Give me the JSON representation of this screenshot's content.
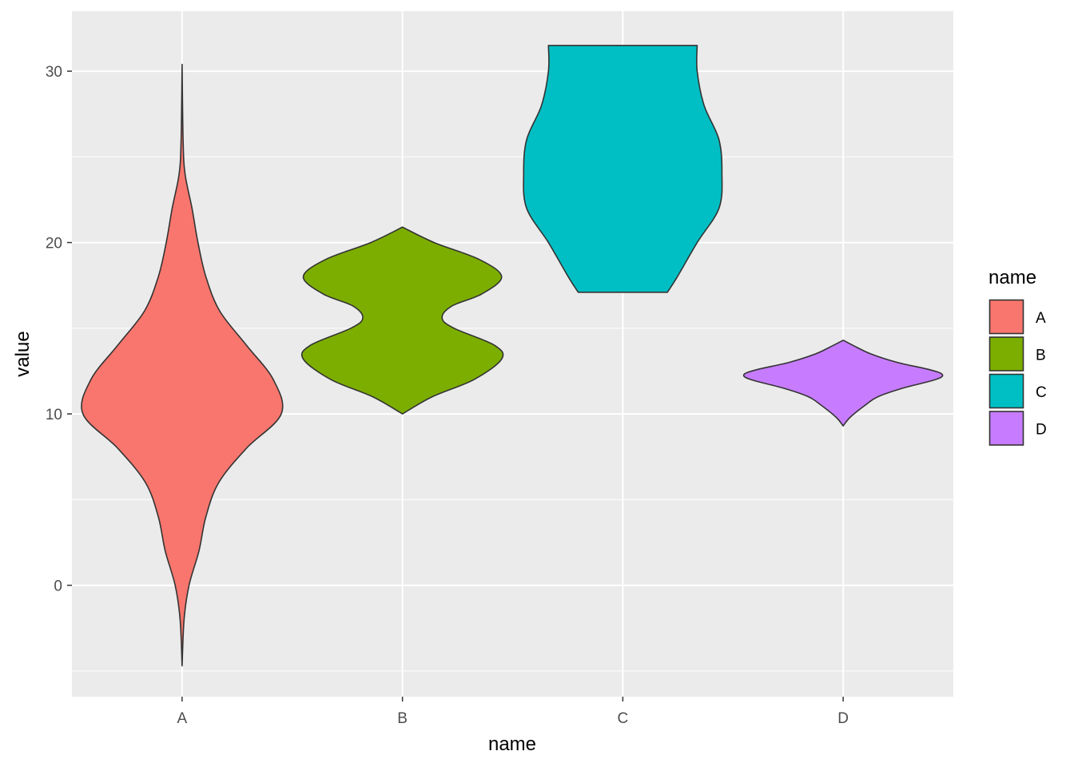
{
  "chart_data": {
    "type": "violin",
    "xlabel": "name",
    "ylabel": "value",
    "categories": [
      "A",
      "B",
      "C",
      "D"
    ],
    "ylim": [
      -6.5,
      33.5
    ],
    "y_ticks": [
      0,
      10,
      20,
      30
    ],
    "y_tick_labels": [
      "0",
      "10",
      "20",
      "30"
    ],
    "grid": true,
    "legend": {
      "title": "name",
      "position": "right",
      "entries": [
        "A",
        "B",
        "C",
        "D"
      ]
    },
    "colors": {
      "A": "#F8766D",
      "B": "#7CAE00",
      "C": "#00BFC4",
      "D": "#C77CFF",
      "panel": "#EBEBEB",
      "outline": "#333333"
    },
    "series": [
      {
        "name": "A",
        "profile": [
          [
            -4.7,
            0.0
          ],
          [
            -2.0,
            0.02
          ],
          [
            0.0,
            0.07
          ],
          [
            2.0,
            0.17
          ],
          [
            4.0,
            0.24
          ],
          [
            6.0,
            0.37
          ],
          [
            8.0,
            0.65
          ],
          [
            10.0,
            1.0
          ],
          [
            12.0,
            0.92
          ],
          [
            14.0,
            0.65
          ],
          [
            16.0,
            0.38
          ],
          [
            18.0,
            0.24
          ],
          [
            20.0,
            0.16
          ],
          [
            22.0,
            0.1
          ],
          [
            24.0,
            0.03
          ],
          [
            26.0,
            0.01
          ],
          [
            30.4,
            0.0
          ]
        ]
      },
      {
        "name": "B",
        "profile": [
          [
            10.0,
            0.0
          ],
          [
            11.0,
            0.3
          ],
          [
            12.0,
            0.72
          ],
          [
            13.2,
            1.0
          ],
          [
            14.0,
            0.93
          ],
          [
            15.0,
            0.52
          ],
          [
            15.6,
            0.4
          ],
          [
            16.3,
            0.5
          ],
          [
            17.0,
            0.8
          ],
          [
            18.0,
            1.0
          ],
          [
            19.0,
            0.78
          ],
          [
            20.0,
            0.32
          ],
          [
            20.9,
            0.0
          ]
        ]
      },
      {
        "name": "C",
        "profile": [
          [
            17.1,
            0.45
          ],
          [
            18.0,
            0.55
          ],
          [
            20.0,
            0.75
          ],
          [
            22.0,
            0.97
          ],
          [
            24.0,
            1.0
          ],
          [
            26.0,
            0.97
          ],
          [
            28.0,
            0.82
          ],
          [
            30.0,
            0.75
          ],
          [
            31.5,
            0.75
          ]
        ]
      },
      {
        "name": "D",
        "profile": [
          [
            9.3,
            0.0
          ],
          [
            9.8,
            0.07
          ],
          [
            10.5,
            0.22
          ],
          [
            11.0,
            0.35
          ],
          [
            11.5,
            0.6
          ],
          [
            12.0,
            0.93
          ],
          [
            12.3,
            1.0
          ],
          [
            12.6,
            0.86
          ],
          [
            13.0,
            0.55
          ],
          [
            13.5,
            0.28
          ],
          [
            14.0,
            0.1
          ],
          [
            14.3,
            0.0
          ]
        ]
      }
    ]
  }
}
